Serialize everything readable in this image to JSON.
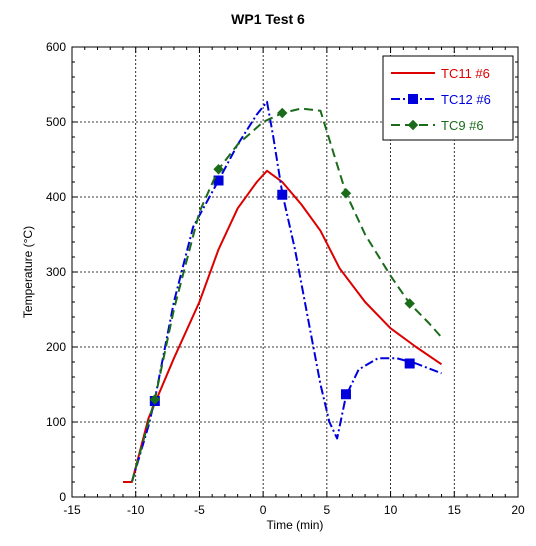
{
  "chart_data": {
    "type": "line",
    "title": "WP1 Test 6",
    "xlabel": "Time (min)",
    "ylabel": "Temperature (°C)",
    "xlim": [
      -15,
      20
    ],
    "ylim": [
      0,
      600
    ],
    "xticks": [
      -15,
      -10,
      -5,
      0,
      5,
      10,
      15,
      20
    ],
    "yticks": [
      0,
      100,
      200,
      300,
      400,
      500,
      600
    ],
    "grid": true,
    "legend_position": "top-right",
    "series": [
      {
        "name": "TC11 #6",
        "color": "#dd0000",
        "style": "solid",
        "marker": "none",
        "x": [
          -11,
          -10.3,
          -9,
          -7,
          -5,
          -3.5,
          -2,
          -0.5,
          0.3,
          1.5,
          3,
          4.5,
          6,
          8,
          10,
          12,
          14
        ],
        "y": [
          20,
          20,
          105,
          185,
          260,
          330,
          385,
          420,
          435,
          420,
          390,
          355,
          305,
          260,
          225,
          200,
          177
        ],
        "marker_points": []
      },
      {
        "name": "TC12 #6",
        "color": "#0000dd",
        "style": "dash-dot",
        "marker": "square",
        "x": [
          -10.3,
          -9,
          -8.5,
          -7,
          -5.5,
          -3.5,
          -2,
          -0.5,
          0.3,
          0.8,
          1.5,
          2.5,
          3.5,
          4.5,
          5.2,
          5.8,
          6.5,
          7.5,
          9,
          10.5,
          12,
          14
        ],
        "y": [
          20,
          95,
          130,
          260,
          360,
          422,
          470,
          510,
          527,
          480,
          405,
          330,
          240,
          150,
          100,
          78,
          135,
          170,
          185,
          185,
          178,
          165
        ],
        "marker_points": [
          [
            -8.5,
            128
          ],
          [
            -3.5,
            422
          ],
          [
            1.5,
            403
          ],
          [
            6.5,
            137
          ],
          [
            11.5,
            178
          ]
        ]
      },
      {
        "name": "TC9 #6",
        "color": "#1a6b1a",
        "style": "dashed",
        "marker": "diamond",
        "x": [
          -10.3,
          -9,
          -8.5,
          -7,
          -5,
          -3.5,
          -2,
          0,
          1.5,
          3,
          4.5,
          5.5,
          6.5,
          8,
          10,
          11.5,
          13,
          14
        ],
        "y": [
          20,
          100,
          130,
          250,
          380,
          437,
          470,
          500,
          512,
          518,
          515,
          460,
          405,
          350,
          295,
          258,
          232,
          213
        ],
        "marker_points": [
          [
            -8.5,
            130
          ],
          [
            -3.5,
            437
          ],
          [
            1.5,
            512
          ],
          [
            6.5,
            405
          ],
          [
            11.5,
            258
          ]
        ]
      }
    ]
  }
}
